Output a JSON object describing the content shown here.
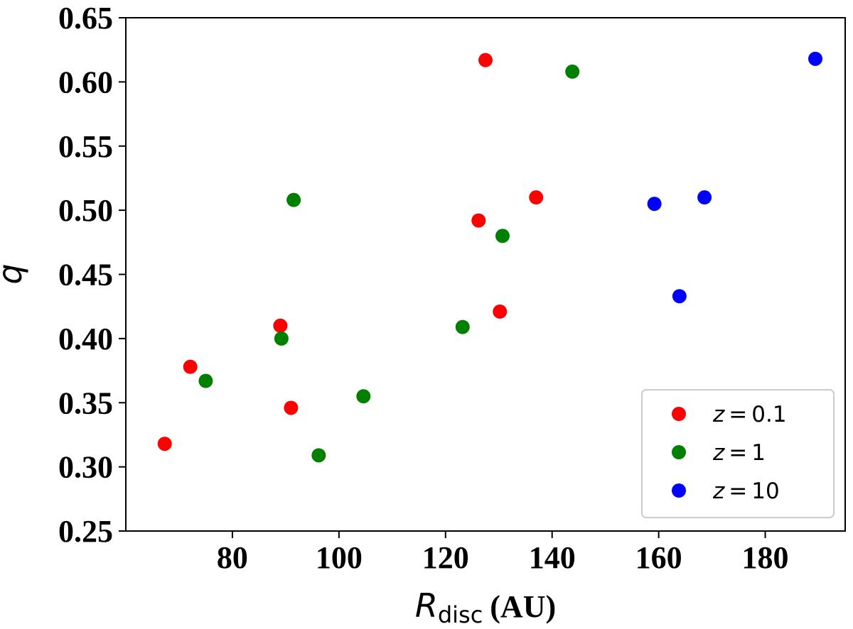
{
  "chart_data": {
    "type": "scatter",
    "xlabel": {
      "symbol": "R",
      "subscript": "disc",
      "unit": "(AU)"
    },
    "ylabel": "q",
    "xlim": [
      60,
      195
    ],
    "ylim": [
      0.25,
      0.65
    ],
    "xticks": [
      80,
      100,
      120,
      140,
      160,
      180
    ],
    "yticks": [
      0.25,
      0.3,
      0.35,
      0.4,
      0.45,
      0.5,
      0.55,
      0.6,
      0.65
    ],
    "ytick_labels": [
      "0.25",
      "0.30",
      "0.35",
      "0.40",
      "0.45",
      "0.50",
      "0.55",
      "0.60",
      "0.65"
    ],
    "grid": false,
    "legend_position": "bottom-right",
    "series": [
      {
        "name": "z = 0.1",
        "label_var": "z",
        "label_eq": "=",
        "label_val": "0.1",
        "color": "#ff0000",
        "points": [
          [
            67.3,
            0.318
          ],
          [
            72.1,
            0.378
          ],
          [
            89.0,
            0.41
          ],
          [
            91.0,
            0.346
          ],
          [
            126.2,
            0.492
          ],
          [
            127.5,
            0.617
          ],
          [
            130.2,
            0.421
          ],
          [
            137.0,
            0.51
          ]
        ]
      },
      {
        "name": "z = 1",
        "label_var": "z",
        "label_eq": "=",
        "label_val": "1",
        "color": "#008000",
        "points": [
          [
            75.0,
            0.367
          ],
          [
            89.2,
            0.4
          ],
          [
            91.5,
            0.508
          ],
          [
            96.2,
            0.309
          ],
          [
            104.6,
            0.355
          ],
          [
            123.2,
            0.409
          ],
          [
            130.7,
            0.48
          ],
          [
            143.8,
            0.608
          ]
        ]
      },
      {
        "name": "z = 10",
        "label_var": "z",
        "label_eq": "=",
        "label_val": "10",
        "color": "#0000ff",
        "points": [
          [
            159.2,
            0.505
          ],
          [
            163.9,
            0.433
          ],
          [
            168.6,
            0.51
          ],
          [
            189.4,
            0.618
          ]
        ]
      }
    ]
  }
}
